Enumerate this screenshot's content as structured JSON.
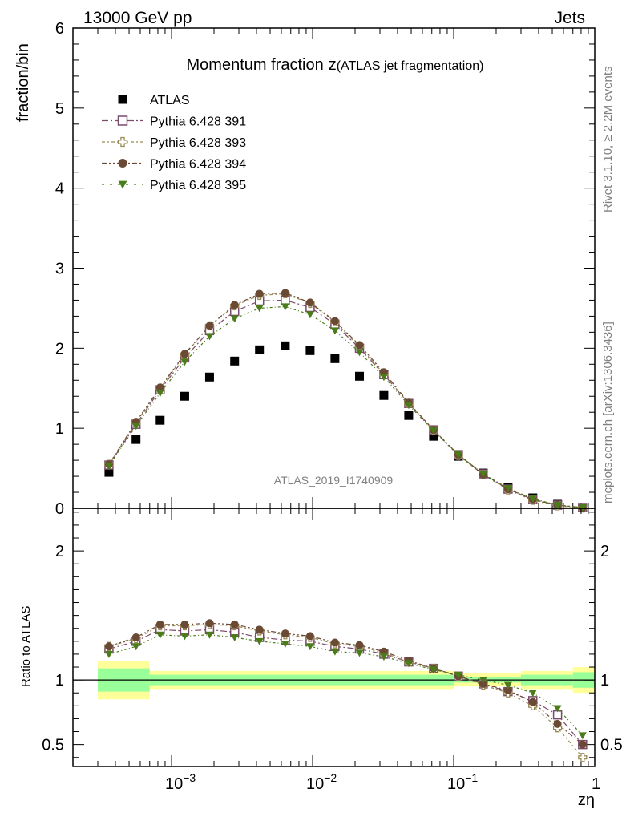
{
  "header": {
    "left": "13000 GeV pp",
    "right": "Jets"
  },
  "side_labels": {
    "rivet": "Rivet 3.1.10, ≥ 2.2M events",
    "mcplots": "mcplots.cern.ch [arXiv:1306.3436]"
  },
  "chart_data": [
    {
      "type": "scatter",
      "title": "Momentum fraction",
      "title_symbol": "z",
      "subtitle": "(ATLAS jet fragmentation)",
      "watermark": "ATLAS_2019_I1740909",
      "ylabel": "fraction/bin",
      "xscale": "log",
      "xlim": [
        0.0002,
        1
      ],
      "ylim": [
        0,
        6
      ],
      "yticks": [
        "0",
        "1",
        "2",
        "3",
        "4",
        "5",
        "6"
      ],
      "legend_position": "top-left",
      "x": [
        0.00036,
        0.00056,
        0.00083,
        0.00124,
        0.00186,
        0.0028,
        0.0042,
        0.0064,
        0.0096,
        0.0144,
        0.0215,
        0.032,
        0.048,
        0.072,
        0.108,
        0.162,
        0.243,
        0.364,
        0.545,
        0.82
      ],
      "series": [
        {
          "name": "ATLAS",
          "marker": "square-filled",
          "color": "#000000",
          "values": [
            0.45,
            0.86,
            1.1,
            1.4,
            1.64,
            1.84,
            1.98,
            2.03,
            1.97,
            1.87,
            1.65,
            1.41,
            1.16,
            0.9,
            0.65,
            0.44,
            0.26,
            0.13,
            0.05,
            0.01
          ]
        },
        {
          "name": "Pythia 6.428 391",
          "marker": "square-open",
          "color": "#7b4b6b",
          "values": [
            0.54,
            1.05,
            1.48,
            1.88,
            2.22,
            2.46,
            2.59,
            2.6,
            2.51,
            2.3,
            2.0,
            1.67,
            1.31,
            0.98,
            0.67,
            0.43,
            0.24,
            0.11,
            0.04,
            0.01
          ]
        },
        {
          "name": "Pythia 6.428 393",
          "marker": "plus-open",
          "color": "#9a8a55",
          "values": [
            0.55,
            1.07,
            1.5,
            1.92,
            2.28,
            2.53,
            2.66,
            2.68,
            2.56,
            2.33,
            2.02,
            1.68,
            1.31,
            0.97,
            0.66,
            0.42,
            0.23,
            0.1,
            0.03,
            0.004
          ]
        },
        {
          "name": "Pythia 6.428 394",
          "marker": "circle-filled",
          "color": "#6b4a35",
          "values": [
            0.55,
            1.08,
            1.51,
            1.93,
            2.28,
            2.54,
            2.68,
            2.69,
            2.57,
            2.34,
            2.04,
            1.7,
            1.32,
            0.98,
            0.67,
            0.42,
            0.24,
            0.11,
            0.04,
            0.005
          ]
        },
        {
          "name": "Pythia 6.428 395",
          "marker": "triangle-down-filled",
          "color": "#4a7d1a",
          "values": [
            0.53,
            1.03,
            1.44,
            1.83,
            2.15,
            2.37,
            2.5,
            2.52,
            2.42,
            2.22,
            1.95,
            1.64,
            1.29,
            0.97,
            0.67,
            0.43,
            0.25,
            0.12,
            0.04,
            0.01
          ]
        }
      ]
    },
    {
      "type": "scatter",
      "ylabel": "Ratio to ATLAS",
      "xlabel": "zη",
      "xscale": "log",
      "xlim": [
        0.0002,
        1
      ],
      "ylim": [
        0.33,
        2.33
      ],
      "yticks": [
        "0.5",
        "1",
        "2"
      ],
      "xticks": [
        {
          "value": 0.001,
          "base": "10",
          "exp": "−3"
        },
        {
          "value": 0.01,
          "base": "10",
          "exp": "−2"
        },
        {
          "value": 0.1,
          "base": "10",
          "exp": "−1"
        },
        {
          "value": 1,
          "base": "1",
          "exp": ""
        }
      ],
      "x": [
        0.00036,
        0.00056,
        0.00083,
        0.00124,
        0.00186,
        0.0028,
        0.0042,
        0.0064,
        0.0096,
        0.0144,
        0.0215,
        0.032,
        0.048,
        0.072,
        0.108,
        0.162,
        0.243,
        0.364,
        0.545,
        0.82
      ],
      "band_edges": [
        0.0003,
        0.0007,
        0.1,
        0.3,
        0.7,
        1.0
      ],
      "band_outer": [
        0.15,
        0.07,
        0.05,
        0.07,
        0.1
      ],
      "band_inner": [
        0.09,
        0.04,
        0.02,
        0.04,
        0.06
      ],
      "band_colors": {
        "outer": "#ffff99",
        "inner": "#99ff99"
      },
      "series": [
        {
          "name": "Pythia 6.428 391",
          "marker": "square-open",
          "color": "#7b4b6b",
          "values": [
            1.24,
            1.3,
            1.39,
            1.38,
            1.39,
            1.37,
            1.33,
            1.31,
            1.3,
            1.26,
            1.24,
            1.2,
            1.14,
            1.09,
            1.03,
            0.97,
            0.91,
            0.84,
            0.73,
            0.5
          ]
        },
        {
          "name": "Pythia 6.428 393",
          "marker": "plus-open",
          "color": "#9a8a55",
          "values": [
            1.26,
            1.32,
            1.42,
            1.42,
            1.43,
            1.42,
            1.38,
            1.35,
            1.33,
            1.28,
            1.26,
            1.21,
            1.14,
            1.09,
            1.03,
            0.96,
            0.9,
            0.8,
            0.63,
            0.4
          ]
        },
        {
          "name": "Pythia 6.428 394",
          "marker": "circle-filled",
          "color": "#6b4a35",
          "values": [
            1.26,
            1.33,
            1.43,
            1.43,
            1.44,
            1.43,
            1.39,
            1.36,
            1.34,
            1.29,
            1.27,
            1.22,
            1.15,
            1.09,
            1.03,
            0.97,
            0.92,
            0.83,
            0.66,
            0.5
          ]
        },
        {
          "name": "Pythia 6.428 395",
          "marker": "triangle-down-filled",
          "color": "#4a7d1a",
          "values": [
            1.2,
            1.26,
            1.35,
            1.34,
            1.35,
            1.33,
            1.3,
            1.28,
            1.26,
            1.22,
            1.21,
            1.18,
            1.13,
            1.08,
            1.04,
            1.0,
            0.96,
            0.9,
            0.78,
            0.57
          ]
        }
      ]
    }
  ]
}
